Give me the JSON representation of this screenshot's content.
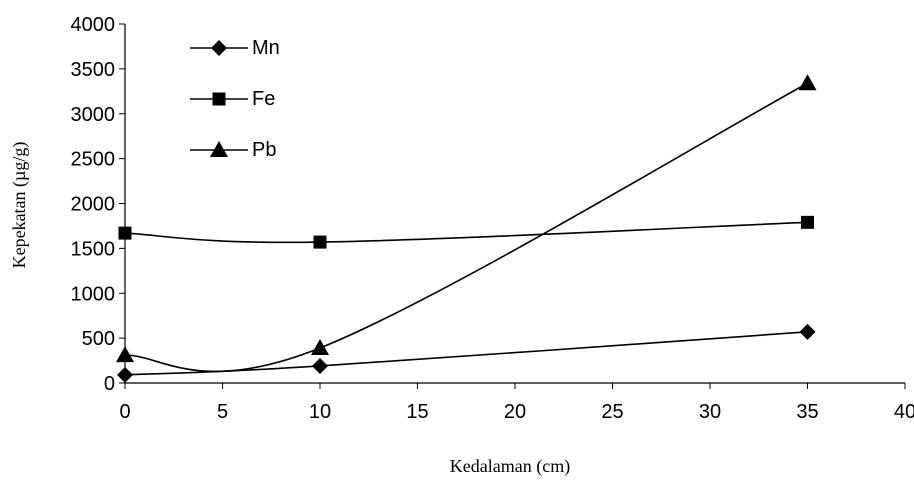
{
  "chart_data": {
    "type": "line",
    "title": "",
    "xlabel": "Kedalaman (cm)",
    "ylabel": "Kepekatan (µg/g)",
    "xlim": [
      0,
      40
    ],
    "ylim": [
      0,
      4000
    ],
    "x_ticks": [
      0,
      5,
      10,
      15,
      20,
      25,
      30,
      35,
      40
    ],
    "y_ticks": [
      0,
      500,
      1000,
      1500,
      2000,
      2500,
      3000,
      3500,
      4000
    ],
    "grid": false,
    "legend_position": "top-left",
    "series": [
      {
        "name": "Mn",
        "marker": "diamond",
        "x": [
          0,
          10,
          35
        ],
        "values": [
          90,
          190,
          570
        ]
      },
      {
        "name": "Fe",
        "marker": "square",
        "x": [
          0,
          10,
          35
        ],
        "values": [
          1670,
          1570,
          1790
        ]
      },
      {
        "name": "Pb",
        "marker": "triangle",
        "x": [
          0,
          10,
          35
        ],
        "values": [
          310,
          390,
          3340
        ]
      }
    ],
    "line_color": "#000000"
  }
}
